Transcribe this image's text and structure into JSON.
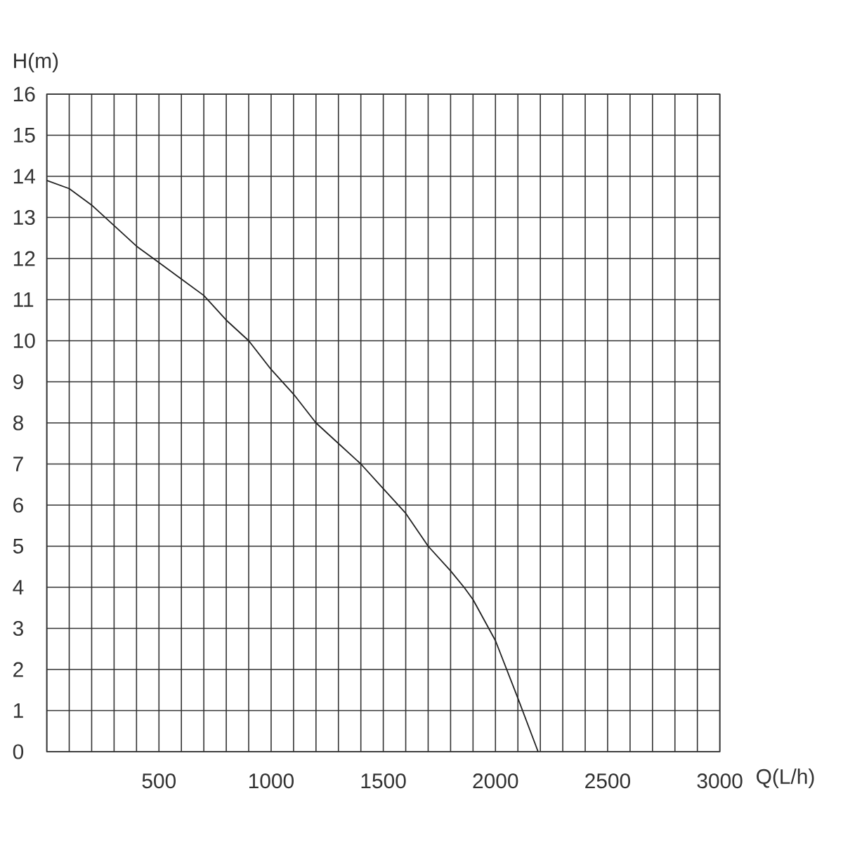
{
  "chart_data": {
    "type": "line",
    "xlabel": "Q(L/h)",
    "ylabel": "H(m)",
    "x": [
      0,
      100,
      200,
      300,
      400,
      500,
      600,
      700,
      800,
      900,
      1000,
      1100,
      1200,
      1300,
      1400,
      1500,
      1600,
      1700,
      1800,
      1860,
      1900,
      2000,
      2100,
      2190
    ],
    "values": [
      13.9,
      13.7,
      13.3,
      12.8,
      12.3,
      11.9,
      11.5,
      11.1,
      10.5,
      10.0,
      9.3,
      8.7,
      8.0,
      7.5,
      7.0,
      6.4,
      5.8,
      5.0,
      4.4,
      4.0,
      3.7,
      2.7,
      1.3,
      0
    ],
    "color": "#222222",
    "xlim": [
      0,
      3000
    ],
    "ylim": [
      0,
      16
    ],
    "xticks": [
      {
        "value": 0,
        "label": null
      },
      {
        "value": 100,
        "label": null
      },
      {
        "value": 200,
        "label": null
      },
      {
        "value": 300,
        "label": null
      },
      {
        "value": 400,
        "label": null
      },
      500,
      {
        "value": 600,
        "label": null
      },
      {
        "value": 700,
        "label": null
      },
      {
        "value": 800,
        "label": null
      },
      {
        "value": 900,
        "label": null
      },
      1000,
      {
        "value": 1100,
        "label": null
      },
      {
        "value": 1200,
        "label": null
      },
      {
        "value": 1300,
        "label": null
      },
      {
        "value": 1400,
        "label": null
      },
      1500,
      {
        "value": 1600,
        "label": null
      },
      {
        "value": 1700,
        "label": null
      },
      {
        "value": 1800,
        "label": null
      },
      {
        "value": 1900,
        "label": null
      },
      2000,
      {
        "value": 2100,
        "label": null
      },
      {
        "value": 2200,
        "label": null
      },
      {
        "value": 2300,
        "label": null
      },
      {
        "value": 2400,
        "label": null
      },
      2500,
      {
        "value": 2600,
        "label": null
      },
      {
        "value": 2700,
        "label": null
      },
      {
        "value": 2800,
        "label": null
      },
      {
        "value": 2900,
        "label": null
      },
      3000
    ],
    "yticks": [
      0,
      1,
      2,
      3,
      4,
      5,
      6,
      7,
      8,
      9,
      10,
      11,
      12,
      13,
      14,
      15,
      16
    ],
    "grid": true
  }
}
